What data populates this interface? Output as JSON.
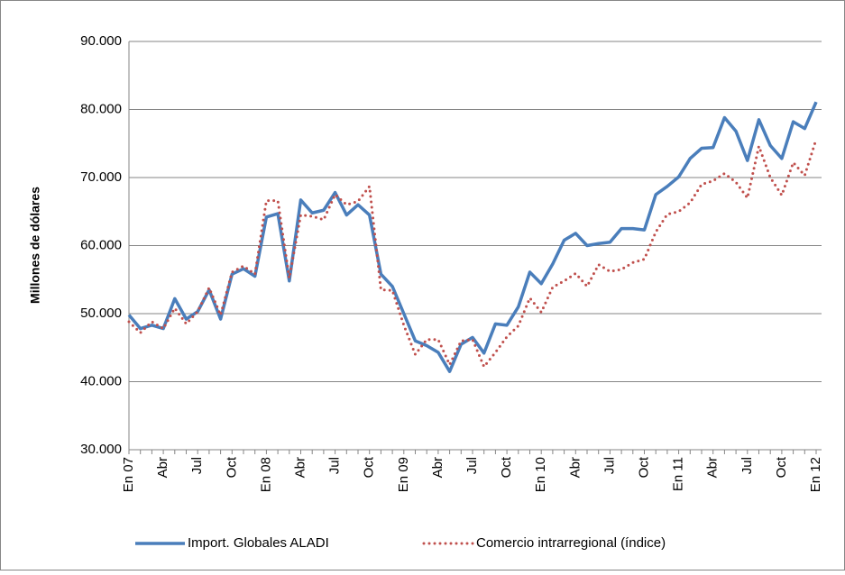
{
  "chart_data": {
    "type": "line",
    "y_label": "Millones de dólares",
    "categories": [
      "En 07",
      null,
      null,
      "Abr",
      null,
      null,
      "Jul",
      null,
      null,
      "Oct",
      null,
      null,
      "En 08",
      null,
      null,
      "Abr",
      null,
      null,
      "Jul",
      null,
      null,
      "Oct",
      null,
      null,
      "En 09",
      null,
      null,
      "Abr",
      null,
      null,
      "Jul",
      null,
      null,
      "Oct",
      null,
      null,
      "En 10",
      null,
      null,
      "Abr",
      null,
      null,
      "Jul",
      null,
      null,
      "Oct",
      null,
      null,
      "En 11",
      null,
      null,
      "Abr",
      null,
      null,
      "Jul",
      null,
      null,
      "Oct",
      null,
      null,
      "En 12"
    ],
    "series": [
      {
        "name": "Import. Globales ALADI",
        "color": "#4a7ebb",
        "line_style": "solid",
        "values": [
          49800,
          47800,
          48300,
          47800,
          52200,
          49200,
          50300,
          53500,
          49200,
          55800,
          56600,
          55500,
          64200,
          64700,
          54800,
          66700,
          64800,
          65200,
          67800,
          64500,
          66000,
          64500,
          55800,
          54000,
          50000,
          46000,
          45300,
          44300,
          41500,
          45500,
          46500,
          44200,
          48500,
          48300,
          51000,
          56100,
          54400,
          57300,
          60800,
          61800,
          60000,
          60300,
          60500,
          62500,
          62500,
          62300,
          67500,
          68700,
          70100,
          72800,
          74300,
          74400,
          78800,
          76800,
          72500,
          78500,
          74700,
          72800,
          78200,
          77200,
          81100
        ]
      },
      {
        "name": "Comercio intrarregional  (índice)",
        "color": "#c0504d",
        "line_style": "dotted",
        "values": [
          48800,
          47200,
          48800,
          47800,
          50800,
          48500,
          50300,
          53800,
          49800,
          56100,
          57000,
          55800,
          66600,
          66600,
          55200,
          64500,
          64300,
          63800,
          67500,
          66000,
          66500,
          68700,
          53500,
          53400,
          48300,
          44000,
          46200,
          46200,
          42500,
          46000,
          46200,
          42200,
          44300,
          46600,
          48200,
          52300,
          50200,
          53900,
          54800,
          55900,
          54000,
          57200,
          56200,
          56500,
          57500,
          58000,
          62000,
          64600,
          65000,
          66300,
          69000,
          69500,
          70600,
          69300,
          67000,
          74600,
          70000,
          67400,
          72200,
          70300,
          75600
        ]
      }
    ],
    "ylim": [
      30000,
      90000
    ],
    "yticks": [
      {
        "value": 30000,
        "label": "30.000"
      },
      {
        "value": 40000,
        "label": "40.000"
      },
      {
        "value": 50000,
        "label": "50.000"
      },
      {
        "value": 60000,
        "label": "60.000"
      },
      {
        "value": 70000,
        "label": "70.000"
      },
      {
        "value": 80000,
        "label": "80.000"
      },
      {
        "value": 90000,
        "label": "90.000"
      }
    ],
    "grid": true,
    "legend": "bottom"
  }
}
